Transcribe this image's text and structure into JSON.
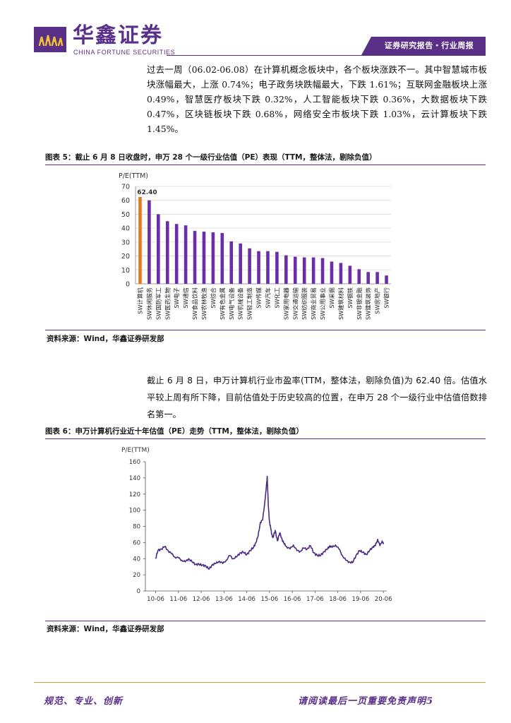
{
  "header": {
    "company_cn": "华鑫证券",
    "company_en": "CHINA FORTUNE SECURITIES",
    "report_type": "证券研究报告・行业周报",
    "logo_icon": "fortune-logo-icon",
    "brand_color": "#5a2f88",
    "accent_color": "#c9a24a"
  },
  "paragraph1": "过去一周（06.02-06.08）在计算机概念板块中，各个板块涨跌不一。其中智慧城市板块涨幅最大，上涨 0.74%；电子政务块跌幅最大，下跌 1.61%；互联网金融板块上涨 0.49%，智慧医疗板块下跌 0.32%，人工智能板块下跌 0.36%，大数据板块下跌 0.47%，区块链板块下跌 0.68%，网络安全市板块下跌 1.03%，云计算板块下跌 1.45%。",
  "figure5": {
    "title": "图表 5：截止 6 月 8 日收盘时，申万 28 个一级行业估值（PE）表现（TTM，整体法，剔除负值）",
    "source": "资料来源：Wind，华鑫证券研发部"
  },
  "paragraph2": "截止 6 月 8 日，申万计算机行业市盈率(TTM，整体法，剔除负值)为 62.40 倍。估值水平较上周有所下降，目前估值处于历史较高的位置，在申万 28 个一级行业中估值倍数排名第一。",
  "figure6": {
    "title": "图表 6：申万计算机行业近十年估值（PE）走势（TTM，整体法，剔除负值）",
    "source": "资料来源：Wind，华鑫证券研发部"
  },
  "chart_data": [
    {
      "type": "bar",
      "ylabel": "P/E(TTM)",
      "ylim": [
        0,
        70
      ],
      "yticks": [
        0,
        10,
        20,
        30,
        40,
        50,
        60,
        70
      ],
      "highlight_color": "#e07b1f",
      "bar_color": "#6a2fa8",
      "data_label": "62.40",
      "categories": [
        "SW计算机",
        "SW休闲服务",
        "SW国防军工",
        "SW医药生物",
        "SW电子",
        "SW通信",
        "SW食品饮料",
        "SW农林牧渔",
        "SW综合",
        "SW有色金属",
        "SW电气设备",
        "SW机械设备",
        "SW轻工制造",
        "SW传媒",
        "SW汽车",
        "SW化工",
        "SW家用电器",
        "SW交通运输",
        "SW纺织服装",
        "SW商业贸易",
        "SW公用事业",
        "SW采掘",
        "SW建筑材料",
        "SW钢铁",
        "SW非银金融",
        "SW建筑装饰",
        "SW房地产",
        "SW银行"
      ],
      "values": [
        62.4,
        60,
        50,
        45,
        43,
        42,
        38,
        37.5,
        37,
        36.5,
        30.5,
        29,
        25.5,
        23.5,
        23.5,
        23,
        20.5,
        19.5,
        19,
        19,
        18.5,
        16,
        15,
        13,
        10.5,
        8.5,
        8.5,
        6
      ]
    },
    {
      "type": "line",
      "ylabel": "P/E(TTM)",
      "ylim": [
        0,
        160
      ],
      "yticks": [
        0,
        20,
        40,
        60,
        80,
        100,
        120,
        140,
        160
      ],
      "x_tick_labels": [
        "10-06",
        "11-06",
        "12-06",
        "13-06",
        "14-06",
        "15-06",
        "16-06",
        "17-06",
        "18-06",
        "19-06",
        "20-06"
      ],
      "line_color": "#4a2a82",
      "series": [
        {
          "x": [
            2010.45,
            2010.55,
            2010.7,
            2010.85,
            2011.0,
            2011.15,
            2011.3,
            2011.45,
            2011.6,
            2011.75,
            2011.9,
            2012.05,
            2012.2,
            2012.35,
            2012.5,
            2012.65,
            2012.8,
            2012.95,
            2013.1,
            2013.25,
            2013.4,
            2013.55,
            2013.7,
            2013.85,
            2014.0,
            2014.15,
            2014.3,
            2014.45,
            2014.6,
            2014.75,
            2014.85,
            2014.95,
            2015.05,
            2015.15,
            2015.25,
            2015.3,
            2015.35,
            2015.4,
            2015.45,
            2015.5,
            2015.55,
            2015.6,
            2015.7,
            2015.8,
            2015.9,
            2016.0,
            2016.1,
            2016.2,
            2016.35,
            2016.5,
            2016.65,
            2016.8,
            2016.95,
            2017.1,
            2017.25,
            2017.4,
            2017.55,
            2017.7,
            2017.85,
            2018.0,
            2018.1,
            2018.2,
            2018.35,
            2018.5,
            2018.65,
            2018.8,
            2018.95,
            2019.1,
            2019.25,
            2019.4,
            2019.55,
            2019.7,
            2019.85,
            2020.0,
            2020.1,
            2020.2,
            2020.3,
            2020.4,
            2020.45
          ],
          "values": [
            40,
            50,
            52,
            55,
            50,
            46,
            42,
            41,
            38,
            36,
            40,
            36,
            33,
            33,
            32,
            31,
            27,
            33,
            34,
            37,
            34,
            38,
            44,
            40,
            42,
            47,
            48,
            45,
            50,
            54,
            60,
            68,
            85,
            88,
            112,
            125,
            142,
            105,
            86,
            78,
            70,
            66,
            75,
            62,
            72,
            64,
            58,
            55,
            52,
            57,
            50,
            49,
            53,
            52,
            56,
            47,
            44,
            44,
            49,
            52,
            56,
            54,
            57,
            52,
            44,
            38,
            36,
            35,
            44,
            50,
            48,
            45,
            50,
            55,
            56,
            64,
            56,
            62,
            58
          ]
        }
      ]
    }
  ],
  "footer": {
    "left": "规范、专业、创新",
    "right": "请阅读最后一页重要免责声明",
    "page_number": "5"
  }
}
